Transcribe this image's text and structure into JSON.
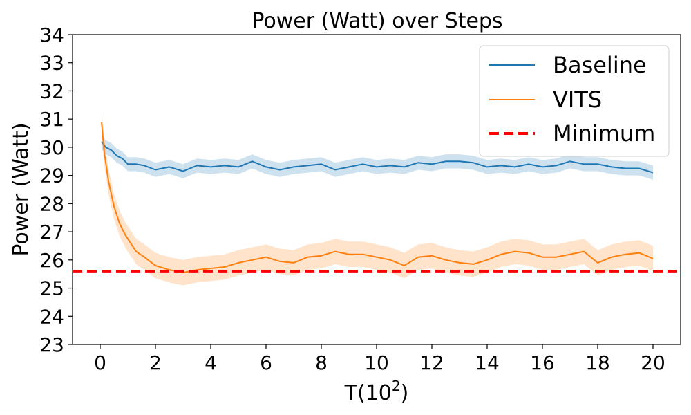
{
  "chart_data": {
    "type": "line",
    "title": "Power (Watt) over Steps",
    "xlabel_base": "T(10",
    "xlabel_exp": "2",
    "xlabel_close": ")",
    "ylabel": "Power (Watt)",
    "xlim": [
      -1,
      21
    ],
    "ylim": [
      23,
      34
    ],
    "xticks": [
      0,
      2,
      4,
      6,
      8,
      10,
      12,
      14,
      16,
      18,
      20
    ],
    "yticks": [
      23,
      24,
      25,
      26,
      27,
      28,
      29,
      30,
      31,
      32,
      33,
      34
    ],
    "grid": false,
    "legend_position": "top-right",
    "series": [
      {
        "name": "Baseline",
        "color": "#1f77b4",
        "band": 0.25,
        "x": [
          0.05,
          0.2,
          0.4,
          0.6,
          0.8,
          1.0,
          1.3,
          1.6,
          2.0,
          2.5,
          3.0,
          3.5,
          4.0,
          4.5,
          5.0,
          5.5,
          6.0,
          6.5,
          7.0,
          7.5,
          8.0,
          8.5,
          9.0,
          9.5,
          10.0,
          10.5,
          11.0,
          11.5,
          12.0,
          12.5,
          13.0,
          13.5,
          14.0,
          14.5,
          15.0,
          15.5,
          16.0,
          16.5,
          17.0,
          17.5,
          18.0,
          18.5,
          19.0,
          19.5,
          20.0
        ],
        "values": [
          30.2,
          30.0,
          29.9,
          29.7,
          29.6,
          29.4,
          29.4,
          29.35,
          29.2,
          29.3,
          29.15,
          29.35,
          29.3,
          29.35,
          29.3,
          29.5,
          29.3,
          29.2,
          29.3,
          29.35,
          29.4,
          29.2,
          29.3,
          29.4,
          29.3,
          29.35,
          29.3,
          29.45,
          29.4,
          29.5,
          29.5,
          29.45,
          29.3,
          29.35,
          29.3,
          29.4,
          29.3,
          29.35,
          29.5,
          29.4,
          29.4,
          29.3,
          29.25,
          29.25,
          29.1
        ]
      },
      {
        "name": "VITS",
        "color": "#ff7f0e",
        "band": 0.45,
        "x": [
          0.05,
          0.15,
          0.3,
          0.5,
          0.7,
          0.9,
          1.1,
          1.3,
          1.6,
          2.0,
          2.5,
          3.0,
          3.5,
          4.0,
          4.5,
          5.0,
          5.5,
          6.0,
          6.5,
          7.0,
          7.5,
          8.0,
          8.5,
          9.0,
          9.5,
          10.0,
          10.5,
          11.0,
          11.5,
          12.0,
          12.5,
          13.0,
          13.5,
          14.0,
          14.5,
          15.0,
          15.5,
          16.0,
          16.5,
          17.0,
          17.5,
          18.0,
          18.5,
          19.0,
          19.5,
          20.0
        ],
        "values": [
          30.9,
          29.8,
          28.8,
          27.9,
          27.3,
          26.9,
          26.6,
          26.3,
          26.1,
          25.8,
          25.65,
          25.55,
          25.65,
          25.7,
          25.75,
          25.9,
          26.0,
          26.1,
          25.95,
          25.9,
          26.1,
          26.15,
          26.3,
          26.2,
          26.2,
          26.1,
          26.0,
          25.8,
          26.1,
          26.15,
          26.0,
          25.9,
          25.85,
          26.0,
          26.2,
          26.3,
          26.25,
          26.1,
          26.1,
          26.2,
          26.3,
          25.9,
          26.1,
          26.2,
          26.25,
          26.05
        ]
      },
      {
        "name": "Minimum",
        "color": "#ff0000",
        "style": "dashed",
        "value": 25.6
      }
    ]
  }
}
